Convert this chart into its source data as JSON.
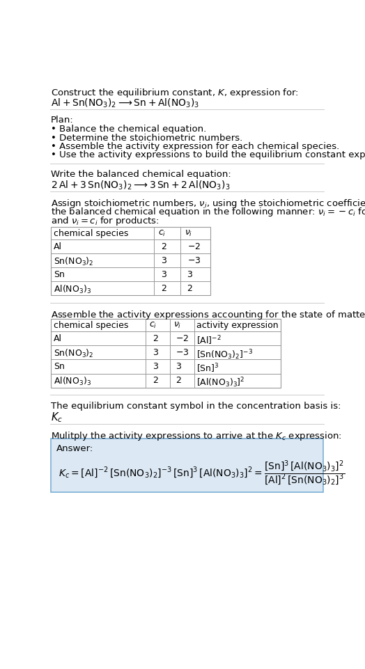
{
  "title_line1": "Construct the equilibrium constant, $K$, expression for:",
  "title_line2": "$\\mathrm{Al + Sn(NO_3)_2 \\longrightarrow Sn + Al(NO_3)_3}$",
  "plan_header": "Plan:",
  "plan_items": [
    "• Balance the chemical equation.",
    "• Determine the stoichiometric numbers.",
    "• Assemble the activity expression for each chemical species.",
    "• Use the activity expressions to build the equilibrium constant expression."
  ],
  "balanced_header": "Write the balanced chemical equation:",
  "balanced_eq": "$\\mathrm{2\\,Al + 3\\,Sn(NO_3)_2 \\longrightarrow 3\\,Sn + 2\\,Al(NO_3)_3}$",
  "stoich_header_parts": [
    "Assign stoichiometric numbers, $\\nu_i$, using the stoichiometric coefficients, $c_i$, from",
    "the balanced chemical equation in the following manner: $\\nu_i = -c_i$ for reactants",
    "and $\\nu_i = c_i$ for products:"
  ],
  "table1_headers": [
    "chemical species",
    "$c_i$",
    "$\\nu_i$"
  ],
  "table1_rows": [
    [
      "Al",
      "2",
      "$-2$"
    ],
    [
      "$\\mathrm{Sn(NO_3)_2}$",
      "3",
      "$-3$"
    ],
    [
      "Sn",
      "3",
      "3"
    ],
    [
      "$\\mathrm{Al(NO_3)_3}$",
      "2",
      "2"
    ]
  ],
  "assemble_header": "Assemble the activity expressions accounting for the state of matter and $\\nu_i$:",
  "table2_headers": [
    "chemical species",
    "$c_i$",
    "$\\nu_i$",
    "activity expression"
  ],
  "table2_rows": [
    [
      "Al",
      "2",
      "$-2$",
      "$[\\mathrm{Al}]^{-2}$"
    ],
    [
      "$\\mathrm{Sn(NO_3)_2}$",
      "3",
      "$-3$",
      "$[\\mathrm{Sn(NO_3)_2}]^{-3}$"
    ],
    [
      "Sn",
      "3",
      "3",
      "$[\\mathrm{Sn}]^3$"
    ],
    [
      "$\\mathrm{Al(NO_3)_3}$",
      "2",
      "2",
      "$[\\mathrm{Al(NO_3)_3}]^2$"
    ]
  ],
  "kc_symbol_header": "The equilibrium constant symbol in the concentration basis is:",
  "kc_symbol": "$K_c$",
  "multiply_header": "Mulitply the activity expressions to arrive at the $K_c$ expression:",
  "answer_label": "Answer:",
  "bg_color": "#ffffff",
  "text_color": "#000000",
  "answer_box_color": "#dce9f5",
  "answer_box_border": "#7bafd4",
  "separator_color": "#cccccc",
  "table_line_color": "#999999",
  "font_size": 9.5,
  "small_font": 9.0
}
